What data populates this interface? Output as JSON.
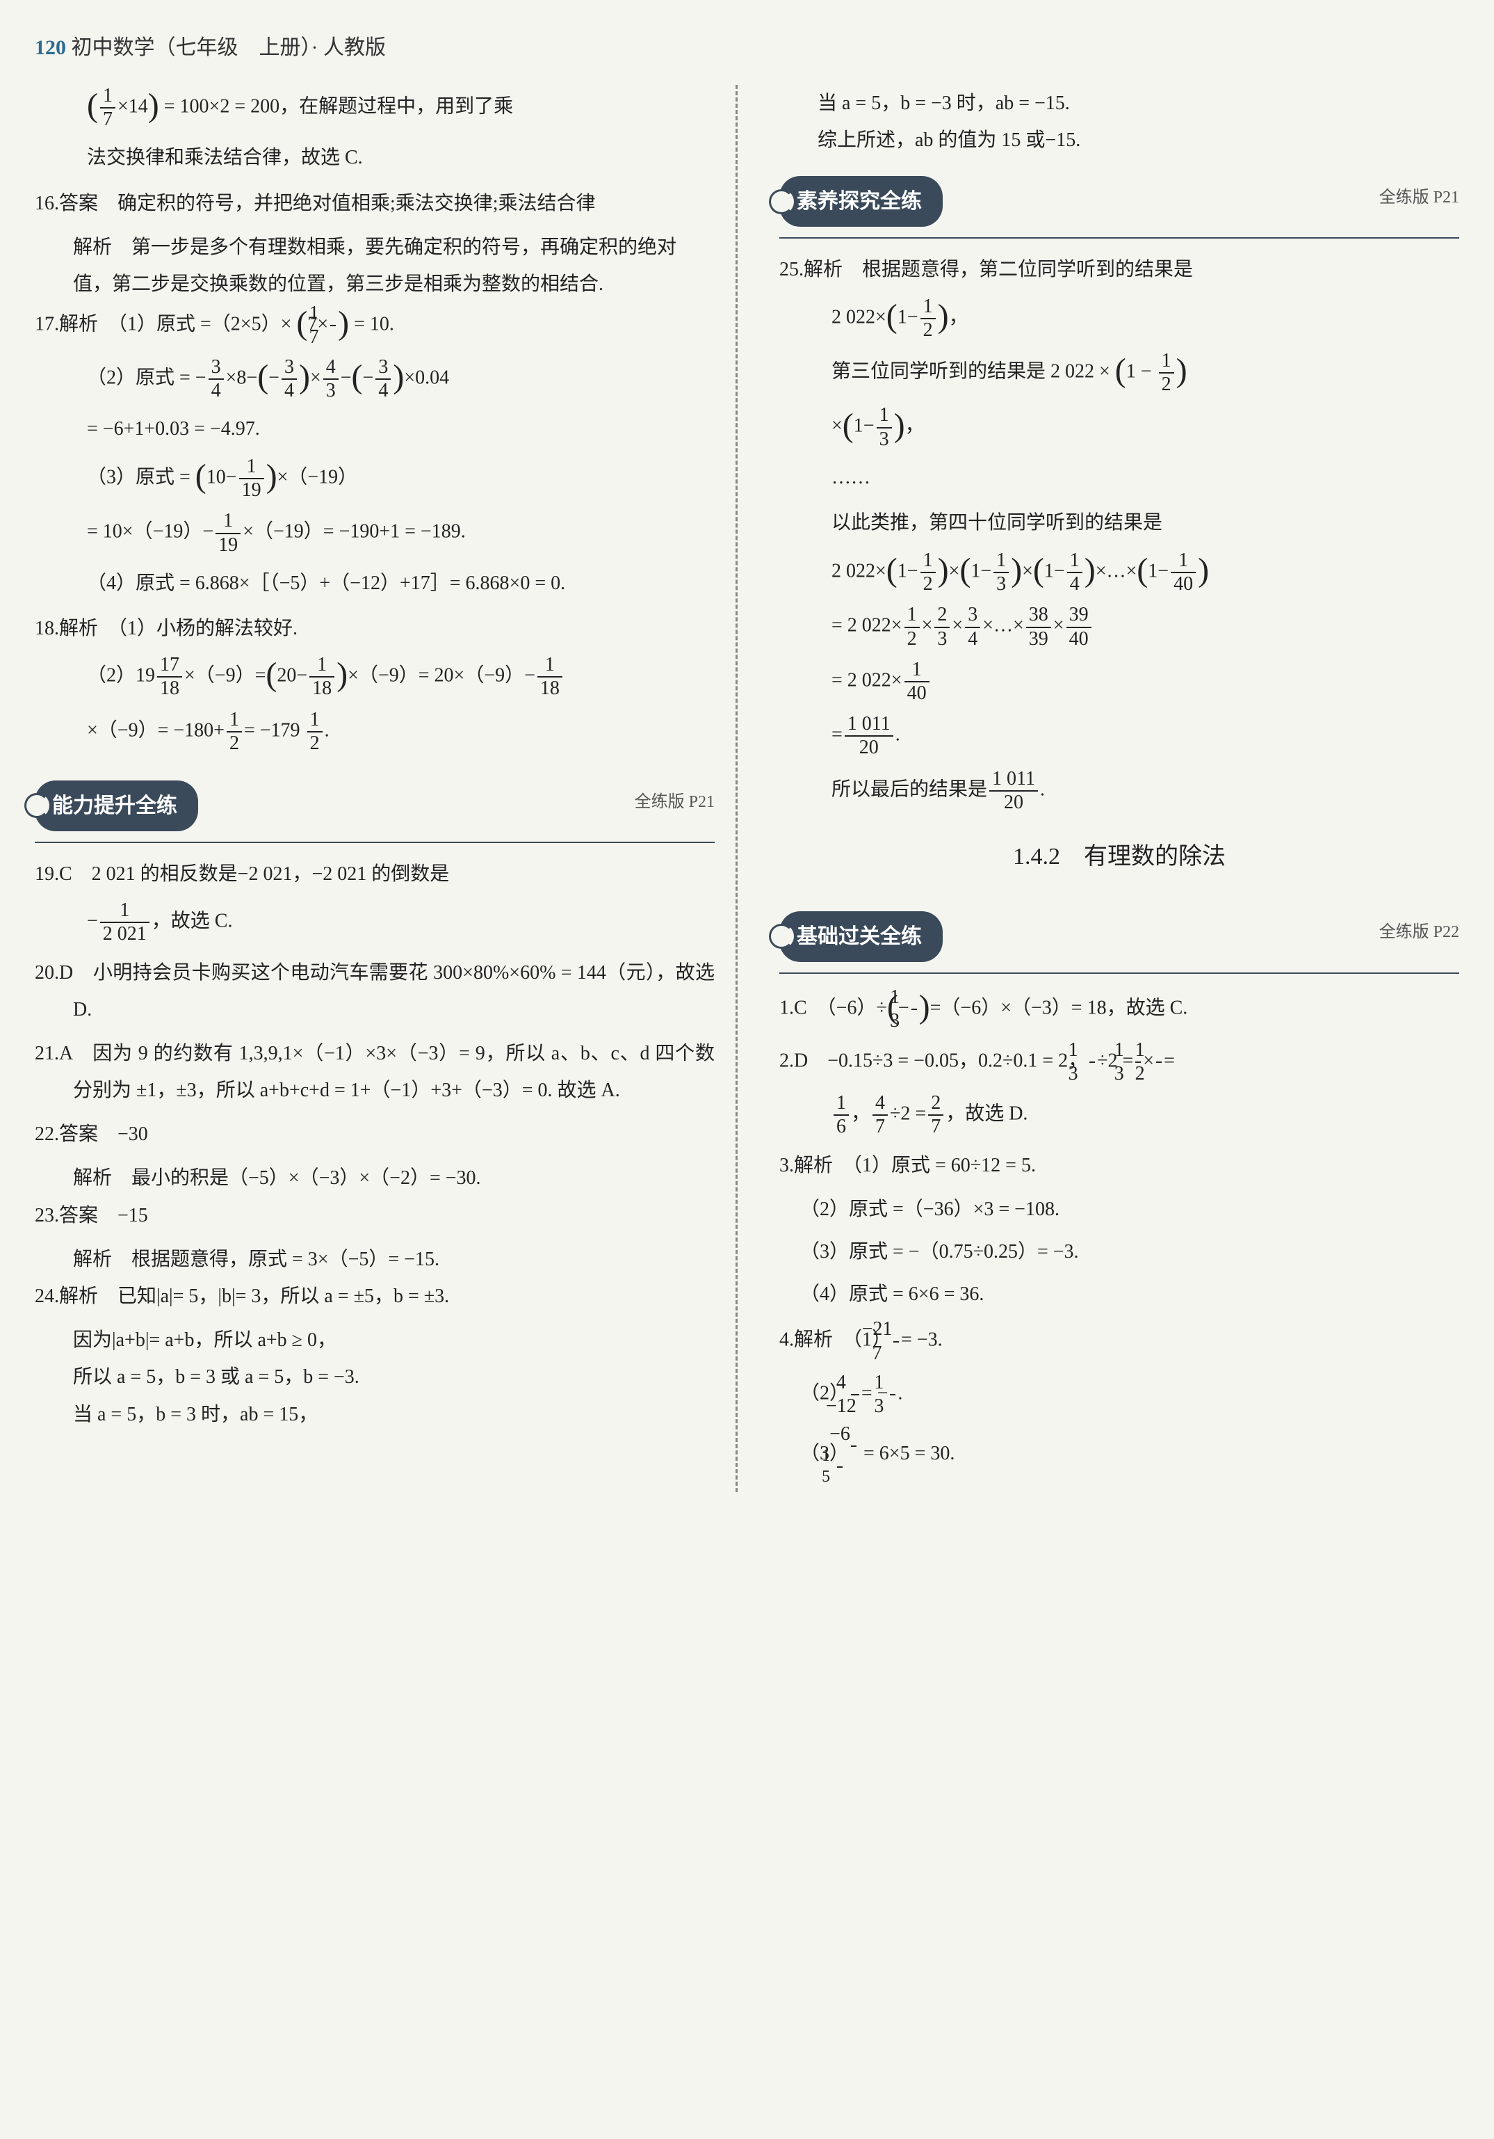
{
  "header": {
    "page_num": "120",
    "title": "初中数学（七年级　上册）· 人教版"
  },
  "sections": {
    "ability": {
      "pill": "能力提升全练",
      "ref": "全练版 P21"
    },
    "literacy": {
      "pill": "素养探究全练",
      "ref": "全练版 P21"
    },
    "basic": {
      "pill": "基础过关全练",
      "ref": "全练版 P22"
    }
  },
  "subtitle": "1.4.2　有理数的除法",
  "left": {
    "l0a": "= 100×2 = 200，在解题过程中，用到了乘",
    "l0b": "法交换律和乘法结合律，故选 C.",
    "l16a": "16.答案　确定积的符号，并把绝对值相乘;乘法交换律;乘法结合律",
    "l16b": "解析　第一步是多个有理数相乘，要先确定积的符号，再确定积的绝对值，第二步是交换乘数的位置，第三步是相乘为整数的相结合.",
    "l17": "17.解析　（1）原式 =（2×5）×",
    "l17end": "= 10.",
    "l17_2a": "（2）原式 = −",
    "l17_2b": "×0.04",
    "l17_2c": "= −6+1+0.03 = −4.97.",
    "l17_3a": "（3）原式 =",
    "l17_3b": "×（−19）",
    "l17_3c": "= 10×（−19）−",
    "l17_3d": "×（−19）= −190+1 = −189.",
    "l17_4": "（4）原式 = 6.868×［（−5）+（−12）+17］= 6.868×0 = 0.",
    "l18a": "18.解析　（1）小杨的解法较好.",
    "l18b": "（2）19",
    "l18c": "×（−9）=",
    "l18d": "×（−9）= 20×（−9）−",
    "l18e": "×（−9）= −180+",
    "l18f": "= −179",
    "l19a": "19.C　2 021 的相反数是−2 021，−2 021 的倒数是",
    "l19b": "，故选 C.",
    "l20": "20.D　小明持会员卡购买这个电动汽车需要花 300×80%×60% = 144（元），故选 D.",
    "l21": "21.A　因为 9 的约数有 1,3,9,1×（−1）×3×（−3）= 9，所以 a、b、c、d 四个数分别为 ±1，±3，所以 a+b+c+d = 1+（−1）+3+（−3）= 0. 故选 A.",
    "l22a": "22.答案　−30",
    "l22b": "解析　最小的积是（−5）×（−3）×（−2）= −30.",
    "l23a": "23.答案　−15",
    "l23b": "解析　根据题意得，原式 = 3×（−5）= −15.",
    "l24a": "24.解析　已知|a|= 5，|b|= 3，所以 a = ±5，b = ±3.",
    "l24b": "因为|a+b|= a+b，所以 a+b ≥ 0，",
    "l24c": "所以 a = 5，b = 3 或 a = 5，b = −3.",
    "l24d": "当 a = 5，b = 3 时，ab = 15，"
  },
  "right": {
    "r0a": "当 a = 5，b = −3 时，ab = −15.",
    "r0b": "综上所述，ab 的值为 15 或−15.",
    "r25a": "25.解析　根据题意得，第二位同学听到的结果是",
    "r25b": "2 022×",
    "r25c": "，",
    "r25d": "第三位同学听到的结果是 2 022 ×",
    "r25e": "×",
    "r25f": "，",
    "r25g": "……",
    "r25h": "以此类推，第四十位同学听到的结果是",
    "r25i": "2 022×",
    "r25j": "×…×",
    "r25k": "= 2 022×",
    "r25l": "×…×",
    "r25m": "= 2 022×",
    "r25n": "=",
    "r25o": ".",
    "r25p": "所以最后的结果是",
    "r1c": "1.C　（−6）÷",
    "r1c2": "=（−6）×（−3）= 18，故选 C.",
    "r2d": "2.D　−0.15÷3 = −0.05，0.2÷0.1 = 2，",
    "r2d2": "÷2 =",
    "r2d3": "=",
    "r2d4": "，",
    "r2d5": "÷2 =",
    "r2d6": "，故选 D.",
    "r3a": "3.解析　（1）原式 = 60÷12 = 5.",
    "r3b": "（2）原式 =（−36）×3 = −108.",
    "r3c": "（3）原式 = −（0.75÷0.25）= −3.",
    "r3d": "（4）原式 = 6×6 = 36.",
    "r4a": "4.解析　（1）",
    "r4a2": "= −3.",
    "r4b": "（2）",
    "r4b2": "= −",
    "r4c": "（3）",
    "r4c2": "= 6×5 = 30."
  }
}
